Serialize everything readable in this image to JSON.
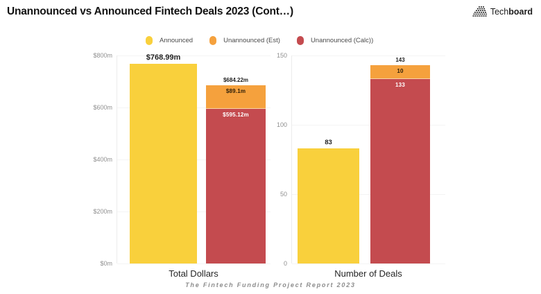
{
  "page": {
    "title": "Unannounced vs Announced Fintech Deals 2023 (Cont…)",
    "brand": {
      "tech": "Tech",
      "board": "board"
    },
    "footer": "The Fintech Funding Project Report 2023"
  },
  "colors": {
    "announced": "#F9D03C",
    "unannounced_est": "#F5A13D",
    "unannounced_calc": "#C44B4F",
    "axis_text": "#8f8f8f",
    "label_dark": "#1f1f1f",
    "label_light": "#ffffff"
  },
  "legend": [
    {
      "label": "Announced",
      "color": "#F9D03C"
    },
    {
      "label": "Unannounced (Est)",
      "color": "#F5A13D"
    },
    {
      "label": "Unannounced (Calc))",
      "color": "#C44B4F"
    }
  ],
  "chart_data": [
    {
      "type": "bar",
      "stacked": true,
      "title": "Total Dollars",
      "ylim": [
        0,
        800
      ],
      "grid": true,
      "yticks": [
        {
          "value": 0,
          "label": "$0m"
        },
        {
          "value": 200,
          "label": "$200m"
        },
        {
          "value": 400,
          "label": "$400m"
        },
        {
          "value": 600,
          "label": "$600m"
        },
        {
          "value": 800,
          "label": "$800m"
        }
      ],
      "bars": [
        {
          "name": "total-dollars-announced",
          "top_label": "$768.99m",
          "top_label_size": "large",
          "segments": [
            {
              "series": "Announced",
              "value": 768.99,
              "color": "#F9D03C"
            }
          ]
        },
        {
          "name": "total-dollars-unannounced",
          "top_label": "$684.22m",
          "top_label_size": "small",
          "segments": [
            {
              "series": "Unannounced (Calc)",
              "value": 595.12,
              "color": "#C44B4F",
              "inside_label": "$595.12m",
              "inside_label_color": "#ffffff"
            },
            {
              "series": "Unannounced (Est)",
              "value": 89.1,
              "color": "#F5A13D",
              "inside_label": "$89.1m",
              "inside_label_color": "#2b1d08",
              "sep": true
            }
          ]
        }
      ]
    },
    {
      "type": "bar",
      "stacked": true,
      "title": "Number of Deals",
      "ylim": [
        0,
        150
      ],
      "grid": true,
      "yticks": [
        {
          "value": 0,
          "label": "0"
        },
        {
          "value": 50,
          "label": "50"
        },
        {
          "value": 100,
          "label": "100"
        },
        {
          "value": 150,
          "label": "150"
        }
      ],
      "bars": [
        {
          "name": "deals-announced",
          "top_label": "83",
          "top_label_size": "medium",
          "segments": [
            {
              "series": "Announced",
              "value": 83,
              "color": "#F9D03C"
            }
          ]
        },
        {
          "name": "deals-unannounced",
          "top_label": "143",
          "top_label_size": "small",
          "segments": [
            {
              "series": "Unannounced (Calc)",
              "value": 133,
              "color": "#C44B4F",
              "inside_label": "133",
              "inside_label_color": "#ffffff"
            },
            {
              "series": "Unannounced (Est)",
              "value": 10,
              "color": "#F5A13D",
              "inside_label": "10",
              "inside_label_color": "#2b1d08",
              "sep": true
            }
          ]
        }
      ]
    }
  ]
}
